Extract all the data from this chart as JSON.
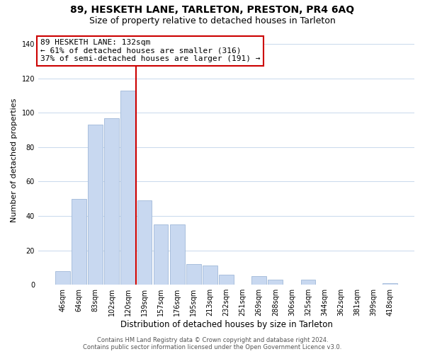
{
  "title": "89, HESKETH LANE, TARLETON, PRESTON, PR4 6AQ",
  "subtitle": "Size of property relative to detached houses in Tarleton",
  "xlabel": "Distribution of detached houses by size in Tarleton",
  "ylabel": "Number of detached properties",
  "bar_labels": [
    "46sqm",
    "64sqm",
    "83sqm",
    "102sqm",
    "120sqm",
    "139sqm",
    "157sqm",
    "176sqm",
    "195sqm",
    "213sqm",
    "232sqm",
    "251sqm",
    "269sqm",
    "288sqm",
    "306sqm",
    "325sqm",
    "344sqm",
    "362sqm",
    "381sqm",
    "399sqm",
    "418sqm"
  ],
  "bar_values": [
    8,
    50,
    93,
    97,
    113,
    49,
    35,
    35,
    12,
    11,
    6,
    0,
    5,
    3,
    0,
    3,
    0,
    0,
    0,
    0,
    1
  ],
  "bar_color": "#c8d8f0",
  "bar_edge_color": "#a0b8d8",
  "vline_color": "#cc0000",
  "ylim": [
    0,
    145
  ],
  "yticks": [
    0,
    20,
    40,
    60,
    80,
    100,
    120,
    140
  ],
  "annotation_title": "89 HESKETH LANE: 132sqm",
  "annotation_line1": "← 61% of detached houses are smaller (316)",
  "annotation_line2": "37% of semi-detached houses are larger (191) →",
  "annotation_box_color": "#ffffff",
  "annotation_box_edge": "#cc0000",
  "footer_line1": "Contains HM Land Registry data © Crown copyright and database right 2024.",
  "footer_line2": "Contains public sector information licensed under the Open Government Licence v3.0.",
  "background_color": "#ffffff",
  "title_fontsize": 10,
  "subtitle_fontsize": 9,
  "annotation_fontsize": 8,
  "ylabel_fontsize": 8,
  "xlabel_fontsize": 8.5,
  "tick_fontsize": 7,
  "footer_fontsize": 6
}
